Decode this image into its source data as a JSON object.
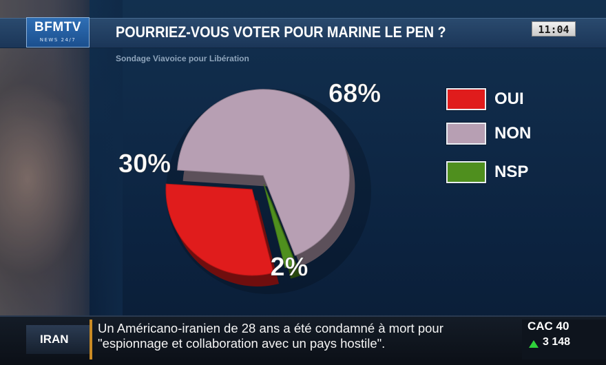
{
  "channel": {
    "logo": "BFMTV",
    "logo_sub": "NEWS 24/7"
  },
  "header": {
    "title": "POURRIEZ-VOUS VOTER POUR MARINE LE PEN ?",
    "clock": "11:04"
  },
  "chart_data": {
    "type": "pie",
    "title": "POURRIEZ-VOUS VOTER POUR MARINE LE PEN ?",
    "subtitle": "Sondage Viavoice pour Libération",
    "slices": [
      {
        "label": "OUI",
        "value": 30,
        "display": "30%",
        "color": "#e01c1c"
      },
      {
        "label": "NON",
        "value": 68,
        "display": "68%",
        "color": "#b79fb3"
      },
      {
        "label": "NSP",
        "value": 2,
        "display": "2%",
        "color": "#4f8f1e"
      }
    ],
    "legend_placement": "right",
    "exploded": true,
    "style": "3d"
  },
  "ticker": {
    "category": "IRAN",
    "line1": "Un Américano-iranien de 28 ans a été condamné à mort pour",
    "line2": "\"espionnage et collaboration avec un pays hostile\"."
  },
  "market": {
    "name": "CAC 40",
    "value": "3 148",
    "trend": "up",
    "trend_color": "#2fd13a"
  }
}
